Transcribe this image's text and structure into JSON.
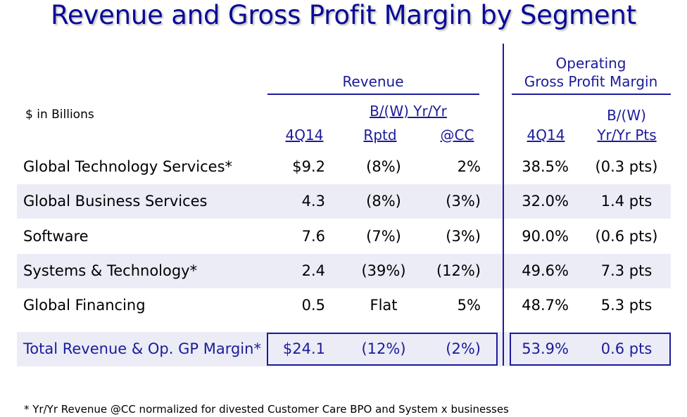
{
  "title": "Revenue and Gross Profit Margin by Segment",
  "units_note": "$ in Billions",
  "headers": {
    "revenue": "Revenue",
    "bw_yr": "B/(W) Yr/Yr",
    "operating": "Operating",
    "gpm": "Gross Profit Margin",
    "bw": "B/(W)",
    "cols": [
      "4Q14",
      "Rptd",
      "@CC",
      "4Q14",
      "Yr/Yr Pts"
    ]
  },
  "rows": [
    {
      "segment": "Global Technology Services*",
      "rev": "$9.2",
      "rptd": "(8%)",
      "cc": "2%",
      "gpm": "38.5%",
      "pts": "(0.3 pts)"
    },
    {
      "segment": "Global Business Services",
      "rev": "4.3",
      "rptd": "(8%)",
      "cc": "(3%)",
      "gpm": "32.0%",
      "pts": "1.4 pts"
    },
    {
      "segment": "Software",
      "rev": "7.6",
      "rptd": "(7%)",
      "cc": "(3%)",
      "gpm": "90.0%",
      "pts": "(0.6 pts)"
    },
    {
      "segment": "Systems & Technology*",
      "rev": "2.4",
      "rptd": "(39%)",
      "cc": "(12%)",
      "gpm": "49.6%",
      "pts": "7.3 pts"
    },
    {
      "segment": "Global Financing",
      "rev": "0.5",
      "rptd": "Flat",
      "cc": "5%",
      "gpm": "48.7%",
      "pts": "5.3 pts"
    }
  ],
  "total": {
    "segment": "Total Revenue & Op. GP Margin*",
    "rev": "$24.1",
    "rptd": "(12%)",
    "cc": "(2%)",
    "gpm": "53.9%",
    "pts": "0.6 pts"
  },
  "footnote": "* Yr/Yr Revenue @CC normalized for divested Customer Care BPO and System x businesses",
  "colors": {
    "accent": "#1b1b9a",
    "title": "#0a0a96",
    "band": "#ececf7"
  }
}
